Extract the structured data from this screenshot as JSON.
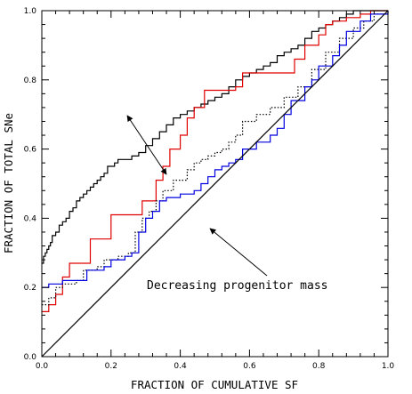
{
  "chart_data": {
    "type": "line",
    "title": "",
    "xlabel": "FRACTION OF CUMULATIVE SF",
    "ylabel": "FRACTION OF TOTAL SNe",
    "xlim": [
      0,
      1
    ],
    "ylim": [
      0,
      1
    ],
    "x_ticks": [
      "0.0",
      "0.2",
      "0.4",
      "0.6",
      "0.8",
      "1.0"
    ],
    "y_ticks": [
      "0.0",
      "0.2",
      "0.4",
      "0.6",
      "0.8",
      "1.0"
    ],
    "grid": false,
    "legend": "none",
    "annotation": "Decreasing progenitor mass",
    "series": [
      {
        "color": "#000000",
        "style": "solid",
        "points": [
          [
            0,
            0.27
          ],
          [
            0.005,
            0.29
          ],
          [
            0.01,
            0.3
          ],
          [
            0.015,
            0.31
          ],
          [
            0.02,
            0.32
          ],
          [
            0.025,
            0.33
          ],
          [
            0.03,
            0.35
          ],
          [
            0.04,
            0.36
          ],
          [
            0.05,
            0.38
          ],
          [
            0.06,
            0.39
          ],
          [
            0.07,
            0.4
          ],
          [
            0.08,
            0.42
          ],
          [
            0.09,
            0.43
          ],
          [
            0.1,
            0.45
          ],
          [
            0.11,
            0.46
          ],
          [
            0.12,
            0.47
          ],
          [
            0.13,
            0.48
          ],
          [
            0.14,
            0.49
          ],
          [
            0.15,
            0.5
          ],
          [
            0.16,
            0.51
          ],
          [
            0.17,
            0.52
          ],
          [
            0.18,
            0.53
          ],
          [
            0.19,
            0.55
          ],
          [
            0.2,
            0.55
          ],
          [
            0.21,
            0.56
          ],
          [
            0.22,
            0.57
          ],
          [
            0.24,
            0.57
          ],
          [
            0.26,
            0.58
          ],
          [
            0.28,
            0.59
          ],
          [
            0.3,
            0.61
          ],
          [
            0.32,
            0.63
          ],
          [
            0.34,
            0.65
          ],
          [
            0.36,
            0.67
          ],
          [
            0.38,
            0.69
          ],
          [
            0.4,
            0.7
          ],
          [
            0.42,
            0.71
          ],
          [
            0.44,
            0.72
          ],
          [
            0.46,
            0.73
          ],
          [
            0.48,
            0.74
          ],
          [
            0.5,
            0.75
          ],
          [
            0.52,
            0.76
          ],
          [
            0.54,
            0.78
          ],
          [
            0.56,
            0.8
          ],
          [
            0.58,
            0.81
          ],
          [
            0.6,
            0.82
          ],
          [
            0.62,
            0.83
          ],
          [
            0.64,
            0.84
          ],
          [
            0.66,
            0.85
          ],
          [
            0.68,
            0.87
          ],
          [
            0.7,
            0.88
          ],
          [
            0.72,
            0.89
          ],
          [
            0.74,
            0.9
          ],
          [
            0.76,
            0.92
          ],
          [
            0.78,
            0.94
          ],
          [
            0.8,
            0.95
          ],
          [
            0.82,
            0.96
          ],
          [
            0.84,
            0.97
          ],
          [
            0.86,
            0.98
          ],
          [
            0.88,
            0.99
          ],
          [
            0.9,
            1.0
          ],
          [
            1.0,
            1.0
          ]
        ]
      },
      {
        "color": "#e00000",
        "style": "solid",
        "points": [
          [
            0,
            0.13
          ],
          [
            0.02,
            0.15
          ],
          [
            0.04,
            0.18
          ],
          [
            0.06,
            0.23
          ],
          [
            0.08,
            0.27
          ],
          [
            0.12,
            0.27
          ],
          [
            0.14,
            0.34
          ],
          [
            0.2,
            0.41
          ],
          [
            0.27,
            0.41
          ],
          [
            0.29,
            0.45
          ],
          [
            0.31,
            0.45
          ],
          [
            0.33,
            0.51
          ],
          [
            0.35,
            0.55
          ],
          [
            0.37,
            0.6
          ],
          [
            0.4,
            0.64
          ],
          [
            0.42,
            0.69
          ],
          [
            0.44,
            0.72
          ],
          [
            0.47,
            0.77
          ],
          [
            0.54,
            0.77
          ],
          [
            0.56,
            0.78
          ],
          [
            0.58,
            0.82
          ],
          [
            0.7,
            0.82
          ],
          [
            0.73,
            0.86
          ],
          [
            0.76,
            0.9
          ],
          [
            0.8,
            0.93
          ],
          [
            0.82,
            0.96
          ],
          [
            0.84,
            0.97
          ],
          [
            0.88,
            0.98
          ],
          [
            0.92,
            0.99
          ],
          [
            0.95,
            1.0
          ],
          [
            1.0,
            1.0
          ]
        ]
      },
      {
        "color": "#000000",
        "style": "dotted",
        "points": [
          [
            0,
            0.15
          ],
          [
            0.02,
            0.17
          ],
          [
            0.04,
            0.2
          ],
          [
            0.06,
            0.21
          ],
          [
            0.1,
            0.22
          ],
          [
            0.12,
            0.25
          ],
          [
            0.16,
            0.26
          ],
          [
            0.18,
            0.28
          ],
          [
            0.22,
            0.29
          ],
          [
            0.25,
            0.3
          ],
          [
            0.27,
            0.36
          ],
          [
            0.29,
            0.4
          ],
          [
            0.31,
            0.42
          ],
          [
            0.33,
            0.45
          ],
          [
            0.35,
            0.48
          ],
          [
            0.38,
            0.51
          ],
          [
            0.42,
            0.54
          ],
          [
            0.44,
            0.56
          ],
          [
            0.46,
            0.57
          ],
          [
            0.48,
            0.58
          ],
          [
            0.5,
            0.59
          ],
          [
            0.52,
            0.6
          ],
          [
            0.54,
            0.62
          ],
          [
            0.56,
            0.64
          ],
          [
            0.58,
            0.68
          ],
          [
            0.62,
            0.7
          ],
          [
            0.66,
            0.72
          ],
          [
            0.7,
            0.75
          ],
          [
            0.74,
            0.78
          ],
          [
            0.78,
            0.83
          ],
          [
            0.82,
            0.88
          ],
          [
            0.86,
            0.92
          ],
          [
            0.9,
            0.95
          ],
          [
            0.93,
            0.97
          ],
          [
            0.96,
            0.99
          ],
          [
            1.0,
            1.0
          ]
        ]
      },
      {
        "color": "#0000e0",
        "style": "solid",
        "points": [
          [
            0,
            0.2
          ],
          [
            0.02,
            0.21
          ],
          [
            0.04,
            0.21
          ],
          [
            0.06,
            0.22
          ],
          [
            0.12,
            0.22
          ],
          [
            0.13,
            0.25
          ],
          [
            0.18,
            0.26
          ],
          [
            0.2,
            0.28
          ],
          [
            0.24,
            0.29
          ],
          [
            0.26,
            0.3
          ],
          [
            0.28,
            0.36
          ],
          [
            0.3,
            0.4
          ],
          [
            0.32,
            0.42
          ],
          [
            0.34,
            0.45
          ],
          [
            0.36,
            0.46
          ],
          [
            0.4,
            0.47
          ],
          [
            0.44,
            0.48
          ],
          [
            0.46,
            0.5
          ],
          [
            0.48,
            0.52
          ],
          [
            0.5,
            0.54
          ],
          [
            0.52,
            0.55
          ],
          [
            0.54,
            0.56
          ],
          [
            0.56,
            0.57
          ],
          [
            0.58,
            0.6
          ],
          [
            0.62,
            0.62
          ],
          [
            0.66,
            0.64
          ],
          [
            0.68,
            0.66
          ],
          [
            0.7,
            0.7
          ],
          [
            0.72,
            0.74
          ],
          [
            0.76,
            0.78
          ],
          [
            0.78,
            0.8
          ],
          [
            0.8,
            0.84
          ],
          [
            0.84,
            0.87
          ],
          [
            0.86,
            0.9
          ],
          [
            0.88,
            0.94
          ],
          [
            0.92,
            0.97
          ],
          [
            0.95,
            0.99
          ],
          [
            1.0,
            1.0
          ]
        ]
      },
      {
        "color": "#000000",
        "style": "solid",
        "points": [
          [
            0,
            0
          ],
          [
            1,
            1
          ]
        ]
      }
    ]
  }
}
